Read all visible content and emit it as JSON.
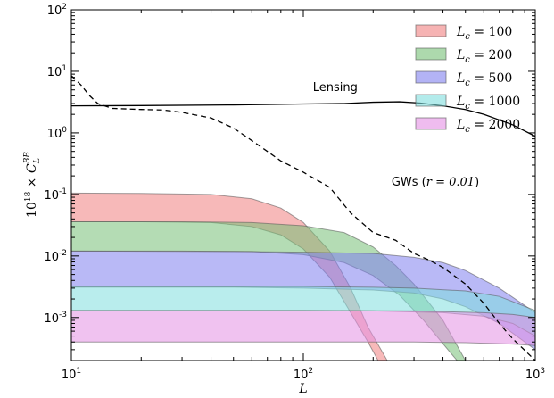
{
  "chart_data": {
    "type": "area",
    "xscale": "log",
    "yscale": "log",
    "xlim": [
      10,
      1000
    ],
    "ylim": [
      0.0002,
      100
    ],
    "xlabel": "L",
    "ylabel": "10^{18} × C_L^{BB}",
    "ylabel_parts": {
      "coef": "10",
      "exp": "18",
      "times": " × ",
      "sym": "C",
      "sup": "BB",
      "sub": "L"
    },
    "x_ticks": [
      {
        "value": 10,
        "base": "10",
        "exp": "1"
      },
      {
        "value": 100,
        "base": "10",
        "exp": "2"
      },
      {
        "value": 1000,
        "base": "10",
        "exp": "3"
      }
    ],
    "y_ticks": [
      {
        "value": 100,
        "base": "10",
        "exp": "2"
      },
      {
        "value": 10,
        "base": "10",
        "exp": "1"
      },
      {
        "value": 1,
        "base": "10",
        "exp": "0"
      },
      {
        "value": 0.1,
        "base": "10",
        "exp": "-1"
      },
      {
        "value": 0.01,
        "base": "10",
        "exp": "-2"
      },
      {
        "value": 0.001,
        "base": "10",
        "exp": "-3"
      }
    ],
    "grid": false,
    "legend_position": "top-right",
    "lines": [
      {
        "name": "Lensing",
        "style": "solid",
        "color": "#000000",
        "points": [
          [
            10,
            2.75
          ],
          [
            20,
            2.78
          ],
          [
            50,
            2.85
          ],
          [
            100,
            2.95
          ],
          [
            150,
            3.0
          ],
          [
            200,
            3.15
          ],
          [
            260,
            3.2
          ],
          [
            320,
            3.05
          ],
          [
            400,
            2.75
          ],
          [
            500,
            2.4
          ],
          [
            600,
            2.0
          ],
          [
            800,
            1.35
          ],
          [
            1000,
            0.88
          ]
        ]
      },
      {
        "name": "GWs (r = 0.01)",
        "style": "dashed",
        "color": "#000000",
        "points": [
          [
            10,
            8.5
          ],
          [
            11,
            6.0
          ],
          [
            12,
            4.0
          ],
          [
            13,
            3.0
          ],
          [
            15,
            2.5
          ],
          [
            20,
            2.4
          ],
          [
            25,
            2.35
          ],
          [
            30,
            2.15
          ],
          [
            40,
            1.75
          ],
          [
            50,
            1.2
          ],
          [
            60,
            0.75
          ],
          [
            70,
            0.5
          ],
          [
            80,
            0.35
          ],
          [
            100,
            0.23
          ],
          [
            130,
            0.13
          ],
          [
            160,
            0.05
          ],
          [
            200,
            0.024
          ],
          [
            250,
            0.018
          ],
          [
            300,
            0.011
          ],
          [
            350,
            0.0085
          ],
          [
            400,
            0.0065
          ],
          [
            500,
            0.0035
          ],
          [
            600,
            0.0017
          ],
          [
            700,
            0.0008
          ],
          [
            800,
            0.00045
          ],
          [
            1000,
            0.0002
          ]
        ]
      }
    ],
    "annotations": [
      {
        "text": "Lensing",
        "x": 110,
        "y": 4.8
      },
      {
        "text_prefix": "GWs (",
        "text_math": "r = 0.01",
        "text_suffix": ")",
        "x": 240,
        "y": 0.14
      }
    ],
    "series": [
      {
        "name": "L_c = 100",
        "label_sym": "L",
        "label_sub": "c",
        "label_val": " = 100",
        "color": "#f08080",
        "upper": [
          [
            10,
            0.105
          ],
          [
            20,
            0.104
          ],
          [
            40,
            0.1
          ],
          [
            60,
            0.085
          ],
          [
            80,
            0.06
          ],
          [
            100,
            0.035
          ],
          [
            130,
            0.012
          ],
          [
            160,
            0.003
          ],
          [
            190,
            0.0007
          ],
          [
            230,
            0.0002
          ]
        ],
        "lower": [
          [
            10,
            0.036
          ],
          [
            20,
            0.036
          ],
          [
            40,
            0.035
          ],
          [
            60,
            0.03
          ],
          [
            80,
            0.022
          ],
          [
            100,
            0.013
          ],
          [
            130,
            0.0045
          ],
          [
            160,
            0.0012
          ],
          [
            190,
            0.0004
          ],
          [
            210,
            0.0002
          ]
        ]
      },
      {
        "name": "L_c = 200",
        "label_sym": "L",
        "label_sub": "c",
        "label_val": " = 200",
        "color": "#77c077",
        "upper": [
          [
            10,
            0.036
          ],
          [
            30,
            0.036
          ],
          [
            60,
            0.035
          ],
          [
            100,
            0.031
          ],
          [
            150,
            0.024
          ],
          [
            200,
            0.014
          ],
          [
            250,
            0.007
          ],
          [
            300,
            0.0035
          ],
          [
            400,
            0.0009
          ],
          [
            500,
            0.0002
          ]
        ],
        "lower": [
          [
            10,
            0.012
          ],
          [
            30,
            0.012
          ],
          [
            60,
            0.0118
          ],
          [
            100,
            0.0105
          ],
          [
            150,
            0.0078
          ],
          [
            200,
            0.0048
          ],
          [
            260,
            0.0023
          ],
          [
            330,
            0.0009
          ],
          [
            420,
            0.0003
          ],
          [
            460,
            0.0002
          ]
        ]
      },
      {
        "name": "L_c = 500",
        "label_sym": "L",
        "label_sub": "c",
        "label_val": " = 500",
        "color": "#8080ee",
        "upper": [
          [
            10,
            0.012
          ],
          [
            50,
            0.0118
          ],
          [
            100,
            0.0115
          ],
          [
            200,
            0.011
          ],
          [
            300,
            0.0095
          ],
          [
            400,
            0.0078
          ],
          [
            500,
            0.0058
          ],
          [
            700,
            0.003
          ],
          [
            1000,
            0.0012
          ]
        ],
        "lower": [
          [
            10,
            0.0031
          ],
          [
            50,
            0.0031
          ],
          [
            100,
            0.003
          ],
          [
            200,
            0.0028
          ],
          [
            300,
            0.0025
          ],
          [
            400,
            0.002
          ],
          [
            500,
            0.0015
          ],
          [
            700,
            0.0008
          ],
          [
            1000,
            0.0003
          ]
        ]
      },
      {
        "name": "L_c = 1000",
        "label_sym": "L",
        "label_sub": "c",
        "label_val": " = 1000",
        "color": "#80dede",
        "upper": [
          [
            10,
            0.0032
          ],
          [
            100,
            0.0032
          ],
          [
            200,
            0.0031
          ],
          [
            300,
            0.003
          ],
          [
            500,
            0.0027
          ],
          [
            700,
            0.0022
          ],
          [
            1000,
            0.0013
          ]
        ],
        "lower": [
          [
            10,
            0.0013
          ],
          [
            100,
            0.0013
          ],
          [
            200,
            0.00128
          ],
          [
            400,
            0.0012
          ],
          [
            600,
            0.00105
          ],
          [
            800,
            0.0008
          ],
          [
            1000,
            0.0005
          ]
        ]
      },
      {
        "name": "L_c = 2000",
        "label_sym": "L",
        "label_sub": "c",
        "label_val": " = 2000",
        "color": "#e490e4",
        "upper": [
          [
            10,
            0.0013
          ],
          [
            100,
            0.0013
          ],
          [
            300,
            0.00128
          ],
          [
            600,
            0.0012
          ],
          [
            800,
            0.00112
          ],
          [
            1000,
            0.001
          ]
        ],
        "lower": [
          [
            10,
            0.0004
          ],
          [
            100,
            0.0004
          ],
          [
            300,
            0.0004
          ],
          [
            500,
            0.00039
          ],
          [
            800,
            0.00037
          ],
          [
            1000,
            0.00035
          ]
        ]
      }
    ]
  }
}
